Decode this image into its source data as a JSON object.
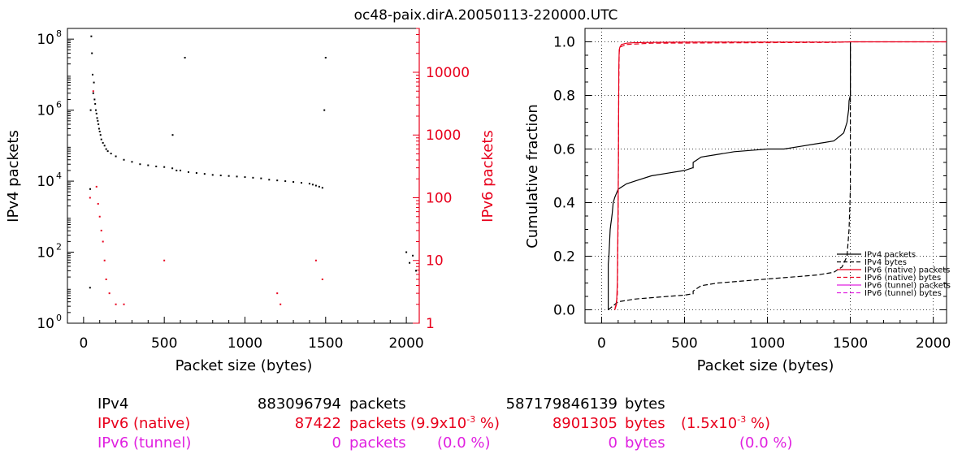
{
  "title": "oc48-paix.dirA.20050113-220000.UTC",
  "colors": {
    "ipv4": "#000000",
    "ipv6_native": "#e8001c",
    "ipv6_tunnel": "#e020e0",
    "grid": "#000000"
  },
  "chart_data": [
    {
      "type": "scatter",
      "xlabel": "Packet size (bytes)",
      "ylabel": "IPv4 packets",
      "ylabel_right": "IPv6 packets",
      "xlim": [
        -100,
        2080
      ],
      "xticks": [
        0,
        500,
        1000,
        1500,
        2000
      ],
      "ylim_left": [
        1,
        200000000
      ],
      "ylim_left_scale": "log",
      "yticks_left": [
        {
          "base": "10",
          "exp": "0"
        },
        {
          "base": "10",
          "exp": "2"
        },
        {
          "base": "10",
          "exp": "4"
        },
        {
          "base": "10",
          "exp": "6"
        },
        {
          "base": "10",
          "exp": "8"
        }
      ],
      "ylim_right": [
        1,
        50000
      ],
      "ylim_right_scale": "log",
      "yticks_right": [
        "1",
        "10",
        "100",
        "1000",
        "10000"
      ],
      "series": [
        {
          "axis": "left",
          "x": [
            40,
            41,
            44,
            48,
            52,
            56,
            60,
            64,
            68,
            72,
            76,
            80,
            84,
            88,
            92,
            96,
            100,
            105,
            110,
            120,
            130,
            140,
            150,
            170,
            200,
            250,
            300,
            350,
            400,
            450,
            500,
            550,
            552,
            576,
            600,
            628,
            650,
            700,
            750,
            800,
            850,
            900,
            950,
            1000,
            1050,
            1100,
            1150,
            1200,
            1250,
            1300,
            1350,
            1400,
            1420,
            1440,
            1460,
            1480,
            1492,
            1500,
            2000,
            2020,
            2040,
            2060
          ],
          "y": [
            10,
            6000,
            1000000,
            120000000,
            40000000,
            10000000,
            3000000,
            6000000,
            2000000,
            1500000,
            1000000,
            800000,
            600000,
            500000,
            400000,
            300000,
            250000,
            200000,
            150000,
            120000,
            100000,
            80000,
            70000,
            60000,
            50000,
            40000,
            35000,
            30000,
            28000,
            26000,
            25000,
            23000,
            200000,
            20000,
            20000,
            30000000,
            18000,
            17000,
            16000,
            15000,
            14500,
            14000,
            13500,
            13000,
            12500,
            12000,
            11000,
            10500,
            10000,
            9500,
            9000,
            8500,
            8000,
            7500,
            7000,
            6500,
            1000000,
            30000000,
            100,
            50,
            80,
            30
          ]
        },
        {
          "axis": "right",
          "x": [
            40,
            60,
            80,
            90,
            100,
            110,
            120,
            130,
            140,
            160,
            200,
            250,
            500,
            1200,
            1220,
            1440,
            1480
          ],
          "y": [
            100,
            5000,
            150,
            80,
            50,
            30,
            20,
            10,
            5,
            3,
            2,
            2,
            10,
            3,
            2,
            10,
            5
          ]
        }
      ]
    },
    {
      "type": "line",
      "xlabel": "Packet size (bytes)",
      "ylabel": "Cumulative fraction",
      "xlim": [
        -100,
        2080
      ],
      "xticks": [
        0,
        500,
        1000,
        1500,
        2000
      ],
      "ylim": [
        -0.05,
        1.05
      ],
      "yticks": [
        "0.0",
        "0.2",
        "0.4",
        "0.6",
        "0.8",
        "1.0"
      ],
      "grid": true,
      "legend_position": "bottom-right",
      "series": [
        {
          "name": "IPv4 packets",
          "style": "solid",
          "x": [
            40,
            40,
            44,
            48,
            52,
            56,
            60,
            64,
            70,
            80,
            100,
            150,
            200,
            300,
            400,
            500,
            550,
            552,
            552,
            576,
            600,
            700,
            800,
            900,
            1000,
            1100,
            1200,
            1300,
            1400,
            1420,
            1440,
            1460,
            1480,
            1490,
            1492,
            1500,
            1500
          ],
          "y": [
            0.0,
            0.17,
            0.2,
            0.25,
            0.3,
            0.32,
            0.34,
            0.36,
            0.4,
            0.42,
            0.45,
            0.47,
            0.48,
            0.5,
            0.51,
            0.52,
            0.53,
            0.53,
            0.55,
            0.56,
            0.57,
            0.58,
            0.59,
            0.595,
            0.6,
            0.6,
            0.61,
            0.62,
            0.63,
            0.64,
            0.65,
            0.66,
            0.7,
            0.75,
            0.78,
            0.8,
            1.0
          ]
        },
        {
          "name": "IPv4 bytes",
          "style": "dashed",
          "x": [
            40,
            60,
            80,
            100,
            200,
            300,
            400,
            500,
            552,
            552,
            600,
            700,
            800,
            900,
            1000,
            1100,
            1200,
            1300,
            1400,
            1450,
            1480,
            1492,
            1500,
            1500
          ],
          "y": [
            0.0,
            0.01,
            0.02,
            0.03,
            0.04,
            0.045,
            0.05,
            0.055,
            0.06,
            0.07,
            0.09,
            0.1,
            0.105,
            0.11,
            0.115,
            0.12,
            0.125,
            0.13,
            0.14,
            0.16,
            0.2,
            0.3,
            0.45,
            1.0
          ]
        },
        {
          "name": "IPv6 (native) packets",
          "style": "solid",
          "x": [
            80,
            90,
            95,
            100,
            102,
            104,
            106,
            110,
            120,
            150,
            200,
            300,
            500,
            1000,
            1200,
            1440,
            1500,
            2080
          ],
          "y": [
            0.0,
            0.02,
            0.1,
            0.4,
            0.6,
            0.9,
            0.97,
            0.98,
            0.99,
            0.995,
            0.997,
            0.998,
            0.999,
            0.999,
            0.999,
            0.999,
            1.0,
            1.0
          ]
        },
        {
          "name": "IPv6 (native) bytes",
          "style": "dashed",
          "x": [
            80,
            95,
            100,
            104,
            106,
            110,
            150,
            300,
            1000,
            1400,
            1500,
            2080
          ],
          "y": [
            0.0,
            0.05,
            0.35,
            0.85,
            0.96,
            0.98,
            0.99,
            0.995,
            0.997,
            0.998,
            1.0,
            1.0
          ]
        },
        {
          "name": "IPv6 (tunnel) packets",
          "style": "solid",
          "x": [],
          "y": []
        },
        {
          "name": "IPv6 (tunnel) bytes",
          "style": "dashed",
          "x": [],
          "y": []
        }
      ]
    }
  ],
  "stats": [
    {
      "label": "IPv4",
      "packets": "883096794",
      "packets_unit": "packets",
      "packets_pct": "",
      "bytes": "587179846139",
      "bytes_unit": "bytes",
      "bytes_pct": ""
    },
    {
      "label": "IPv6 (native)",
      "packets": "87422",
      "packets_unit": "packets",
      "packets_pct": "(9.9x10",
      "packets_exp": "-3",
      "packets_pct_tail": " %)",
      "bytes": "8901305",
      "bytes_unit": "bytes",
      "bytes_pct": "(1.5x10",
      "bytes_exp": "-3",
      "bytes_pct_tail": " %)"
    },
    {
      "label": "IPv6 (tunnel)",
      "packets": "0",
      "packets_unit": "packets",
      "packets_pct": "(0.0 %)",
      "bytes": "0",
      "bytes_unit": "bytes",
      "bytes_pct": "(0.0 %)"
    }
  ]
}
